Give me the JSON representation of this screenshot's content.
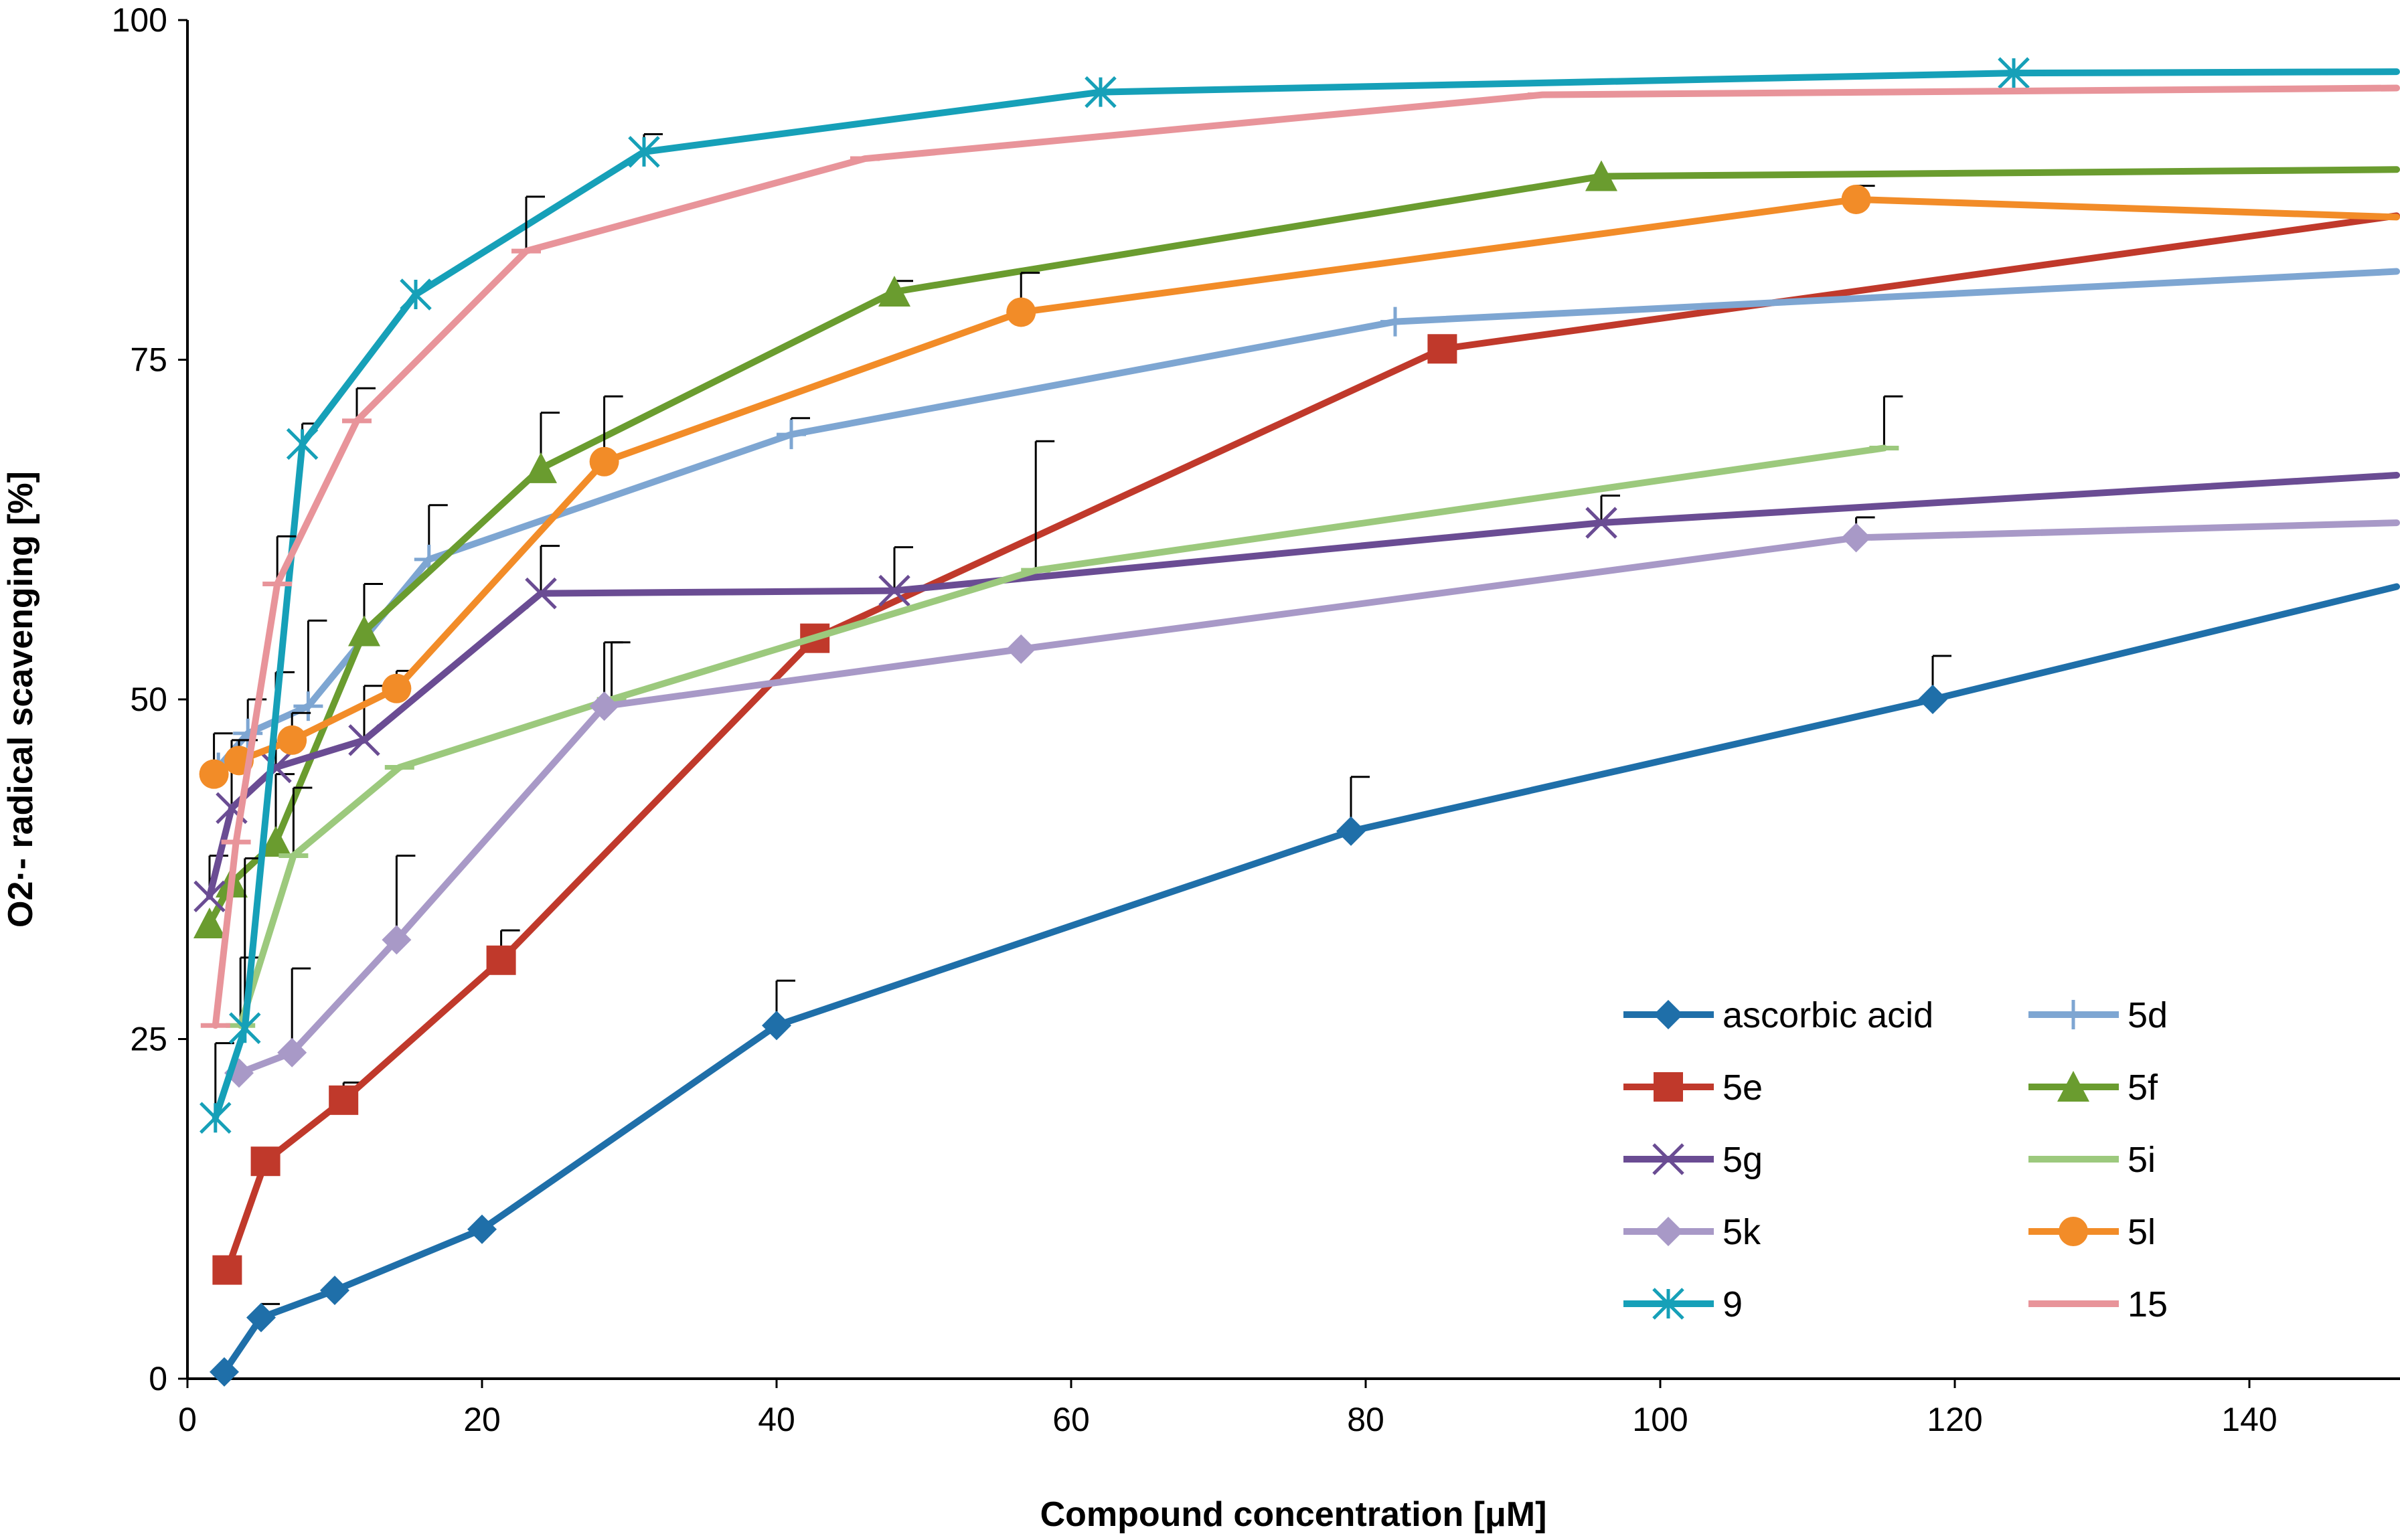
{
  "chart_data": {
    "type": "line",
    "title": "",
    "xlabel": "Compound concentration [μM]",
    "ylabel": "O2·- radical scavenging [%]",
    "xlim": [
      0,
      150
    ],
    "ylim": [
      0,
      100
    ],
    "xticks": [
      0,
      20,
      40,
      60,
      80,
      100,
      120,
      140
    ],
    "yticks": [
      0,
      25,
      50,
      75,
      100
    ],
    "grid": false,
    "legend_position": "bottom-right",
    "series": [
      {
        "name": "ascorbic acid",
        "color": "#1f6fa9",
        "marker": "diamond",
        "x": [
          2.5,
          5,
          10,
          20,
          40,
          79,
          118.5,
          150
        ],
        "y": [
          0.5,
          4.5,
          6.5,
          11,
          26,
          40.3,
          50,
          58.3
        ],
        "err": [
          0,
          1,
          0,
          0,
          3.3,
          4,
          3.2,
          0
        ]
      },
      {
        "name": "5e",
        "color": "#c0392b",
        "marker": "square",
        "x": [
          2.7,
          5.3,
          10.6,
          21.3,
          42.6,
          85.2,
          150
        ],
        "y": [
          8,
          16,
          20.5,
          30.8,
          54.5,
          75.8,
          85.6
        ],
        "err": [
          0,
          0,
          1.3,
          2.2,
          0,
          0,
          0
        ]
      },
      {
        "name": "5d",
        "color": "#7ea6d2",
        "marker": "plus",
        "x": [
          2.1,
          4.1,
          8.2,
          16.4,
          41,
          82,
          150
        ],
        "y": [
          45,
          47.5,
          49.5,
          60.3,
          69.5,
          77.8,
          81.5
        ],
        "err": [
          0,
          2.5,
          6.3,
          4,
          1.2,
          0,
          0
        ]
      },
      {
        "name": "5f",
        "color": "#6a9c2f",
        "marker": "triangle",
        "x": [
          1.5,
          3,
          6,
          12,
          24,
          48,
          96,
          150
        ],
        "y": [
          33.5,
          36.5,
          39.5,
          55,
          67,
          80,
          88.5,
          89
        ],
        "err": [
          0,
          0,
          5,
          3.5,
          4.1,
          0.8,
          0,
          0
        ]
      },
      {
        "name": "5g",
        "color": "#6a4c93",
        "marker": "x",
        "x": [
          1.5,
          3,
          6,
          12,
          24,
          48,
          96,
          150
        ],
        "y": [
          35.5,
          42,
          45,
          47,
          57.8,
          58,
          63,
          66.5
        ],
        "err": [
          3,
          5,
          7,
          4,
          3.5,
          3.2,
          2,
          0
        ]
      },
      {
        "name": "5i",
        "color": "#9cc97d",
        "marker": "dash",
        "x": [
          3.6,
          7.2,
          14.4,
          28.8,
          57.6,
          115.2
        ],
        "y": [
          26,
          38.5,
          45,
          50,
          59.5,
          68.5
        ],
        "err": [
          5,
          5,
          0,
          4.2,
          9.5,
          3.8
        ]
      },
      {
        "name": "5k",
        "color": "#a899c7",
        "marker": "diamond",
        "x": [
          3.5,
          7.1,
          14.2,
          28.3,
          56.6,
          113.3,
          150
        ],
        "y": [
          22.5,
          24,
          32.3,
          49.5,
          53.7,
          61.9,
          63
        ],
        "err": [
          0,
          6.2,
          6.2,
          4.7,
          0,
          1.5,
          0
        ]
      },
      {
        "name": "5l",
        "color": "#f28c28",
        "marker": "circle",
        "x": [
          1.8,
          3.5,
          7.1,
          14.2,
          28.3,
          56.6,
          113.3,
          150
        ],
        "y": [
          44.5,
          45.5,
          47,
          50.8,
          67.5,
          78.5,
          86.8,
          85.5
        ],
        "err": [
          3,
          1.5,
          2,
          1.3,
          4.8,
          2.9,
          1,
          0
        ]
      },
      {
        "name": "9",
        "color": "#16a0b8",
        "marker": "star",
        "x": [
          1.9,
          3.9,
          7.8,
          15.5,
          31,
          62,
          124,
          150
        ],
        "y": [
          19.2,
          25.8,
          68.8,
          79.8,
          90.3,
          94.7,
          96.1,
          96.2
        ],
        "err": [
          5.5,
          12.5,
          1.5,
          0,
          1.3,
          0,
          0,
          0
        ]
      },
      {
        "name": "15",
        "color": "#e8949a",
        "marker": "dash",
        "x": [
          1.9,
          3.3,
          6.1,
          11.5,
          23,
          46,
          92,
          150
        ],
        "y": [
          26,
          39.5,
          58.5,
          70.5,
          83,
          89.8,
          94.5,
          95
        ],
        "err": [
          0,
          0,
          3.5,
          2.4,
          4,
          0,
          0,
          0
        ]
      }
    ],
    "legend_order": [
      "ascorbic acid",
      "5d",
      "5e",
      "5f",
      "5g",
      "5i",
      "5k",
      "5l",
      "9",
      "15"
    ]
  }
}
